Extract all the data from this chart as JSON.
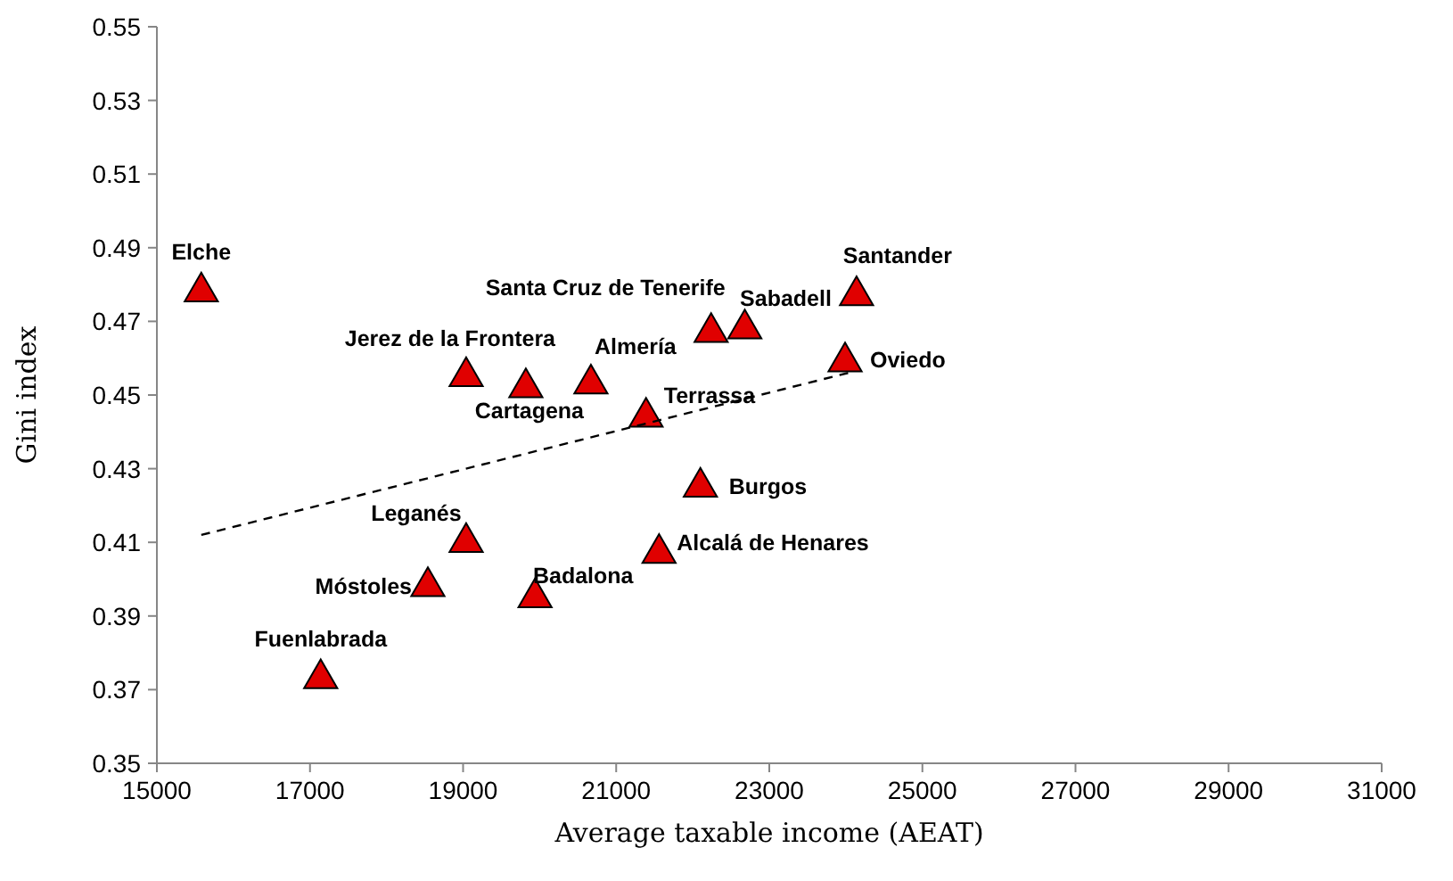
{
  "chart_data": {
    "type": "scatter",
    "xlabel": "Average taxable income (AEAT)",
    "ylabel": "Gini index",
    "xlim": [
      15000,
      31000
    ],
    "xticks": [
      15000,
      17000,
      19000,
      21000,
      23000,
      25000,
      27000,
      29000,
      31000
    ],
    "ylim": [
      0.35,
      0.55
    ],
    "yticks": [
      0.35,
      0.37,
      0.39,
      0.41,
      0.43,
      0.45,
      0.47,
      0.49,
      0.51,
      0.53,
      0.55
    ],
    "grid": false,
    "series": [
      {
        "color": "#e00000",
        "marker": "triangle",
        "x": [
          15580,
          17140,
          18540,
          19040,
          19040,
          19820,
          19940,
          20670,
          21390,
          21560,
          22100,
          22240,
          22680,
          23990,
          24140
        ],
        "values": [
          0.478,
          0.373,
          0.398,
          0.455,
          0.41,
          0.452,
          0.395,
          0.453,
          0.444,
          0.407,
          0.425,
          0.467,
          0.468,
          0.459,
          0.477
        ]
      },
      {
        "type": "line",
        "color": "#000000",
        "line_style": "dashed",
        "marker": "none",
        "x": [
          15580,
          24030
        ],
        "values": [
          0.412,
          0.456
        ]
      }
    ],
    "annotations": [
      {
        "text": "Elche",
        "x": 15580,
        "y": 0.478
      },
      {
        "text": "Fuenlabrada",
        "x": 17140,
        "y": 0.373
      },
      {
        "text": "Móstoles",
        "x": 18540,
        "y": 0.398
      },
      {
        "text": "Jerez de la Frontera",
        "x": 19040,
        "y": 0.455
      },
      {
        "text": "Leganés",
        "x": 19040,
        "y": 0.41
      },
      {
        "text": "Cartagena",
        "x": 19820,
        "y": 0.452
      },
      {
        "text": "Badalona",
        "x": 19940,
        "y": 0.395
      },
      {
        "text": "Almería",
        "x": 20670,
        "y": 0.453
      },
      {
        "text": "Terrassa",
        "x": 21390,
        "y": 0.444
      },
      {
        "text": "Alcalá de Henares",
        "x": 21560,
        "y": 0.407
      },
      {
        "text": "Burgos",
        "x": 22100,
        "y": 0.425
      },
      {
        "text": "Santa Cruz de Tenerife",
        "x": 22240,
        "y": 0.467
      },
      {
        "text": "Sabadell",
        "x": 22680,
        "y": 0.468
      },
      {
        "text": "Oviedo",
        "x": 23990,
        "y": 0.459
      },
      {
        "text": "Santander",
        "x": 24140,
        "y": 0.477
      }
    ]
  }
}
